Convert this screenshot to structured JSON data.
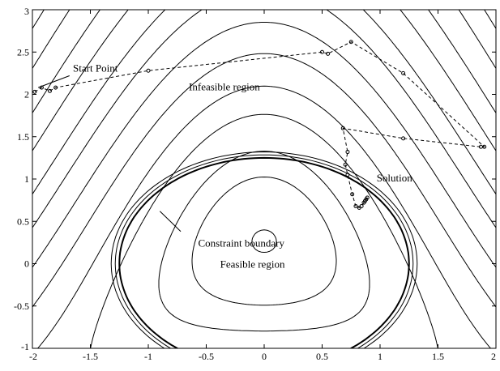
{
  "chart_data": {
    "type": "line",
    "title": "",
    "xlabel": "",
    "ylabel": "",
    "xlim": [
      -2,
      2
    ],
    "ylim": [
      -1,
      3
    ],
    "grid": false,
    "xticks": [
      -2,
      -1.5,
      -1,
      -0.5,
      0,
      0.5,
      1,
      1.5,
      2
    ],
    "yticks": [
      -1,
      -0.5,
      0,
      0.5,
      1,
      1.5,
      2,
      2.5,
      3
    ],
    "xtick_labels": [
      "-2",
      "-1.5",
      "-1",
      "-0.5",
      "0",
      "0.5",
      "1",
      "1.5",
      "2"
    ],
    "ytick_labels": [
      "-1",
      "-0.5",
      "0",
      "0.5",
      "1",
      "1.5",
      "2",
      "2.5",
      "3"
    ],
    "contour_levels": [
      -0.8,
      -0.5,
      -0.25,
      0,
      0.25,
      0.5,
      1,
      1.5,
      2.2,
      3,
      4,
      5,
      6.5,
      8,
      10,
      12
    ],
    "constraint_boundary": {
      "a": 1.25,
      "b": 1.25
    },
    "trajectory": [
      [
        -1.98,
        2.03
      ],
      [
        -1.92,
        2.08
      ],
      [
        -1.85,
        2.04
      ],
      [
        -1.8,
        2.08
      ],
      [
        -1.0,
        2.28
      ],
      [
        0.5,
        2.5
      ],
      [
        0.55,
        2.48
      ],
      [
        0.75,
        2.62
      ],
      [
        1.2,
        2.25
      ],
      [
        1.9,
        1.38
      ],
      [
        1.87,
        1.38
      ],
      [
        1.2,
        1.48
      ],
      [
        0.68,
        1.6
      ],
      [
        0.72,
        1.32
      ],
      [
        0.7,
        1.17
      ],
      [
        0.72,
        1.05
      ],
      [
        0.76,
        0.82
      ],
      [
        0.79,
        0.68
      ],
      [
        0.82,
        0.66
      ],
      [
        0.84,
        0.68
      ],
      [
        0.86,
        0.72
      ],
      [
        0.87,
        0.74
      ],
      [
        0.88,
        0.76
      ],
      [
        0.89,
        0.78
      ]
    ],
    "annotations": [
      {
        "text": "Start Point",
        "x": -1.65,
        "y": 2.27
      },
      {
        "text": "Infeasible region",
        "x": -0.65,
        "y": 2.05
      },
      {
        "text": "Solution",
        "x": 0.97,
        "y": 0.97
      },
      {
        "text": "Constraint boundary",
        "x": -0.57,
        "y": 0.2
      },
      {
        "text": "Feasible region",
        "x": -0.38,
        "y": -0.05
      }
    ],
    "colors": {
      "lines": "#000000",
      "background": "#ffffff"
    }
  }
}
